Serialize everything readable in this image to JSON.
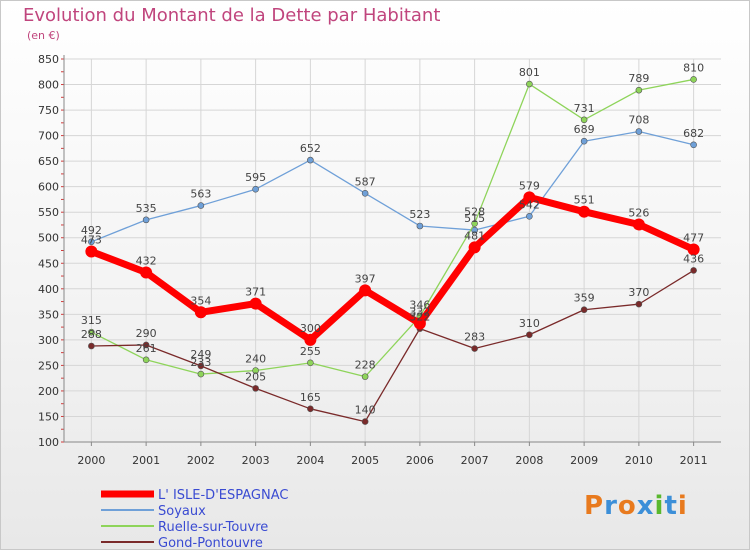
{
  "chart_data": {
    "type": "line",
    "title": "Evolution du Montant de la Dette par Habitant",
    "subtitle": "(en €)",
    "x": [
      "2000",
      "2001",
      "2002",
      "2003",
      "2004",
      "2005",
      "2006",
      "2007",
      "2008",
      "2009",
      "2010",
      "2011"
    ],
    "ylim": [
      100,
      850
    ],
    "yticks": [
      100,
      150,
      200,
      250,
      300,
      350,
      400,
      450,
      500,
      550,
      600,
      650,
      700,
      750,
      800,
      850
    ],
    "grid": true,
    "legend_position": "bottom-left",
    "series": [
      {
        "name": "L' ISLE-D'ESPAGNAC",
        "color": "#ff0000",
        "values": [
          473,
          432,
          354,
          371,
          300,
          397,
          332,
          481,
          579,
          551,
          526,
          477
        ]
      },
      {
        "name": "Soyaux",
        "color": "#6fa0d8",
        "values": [
          492,
          535,
          563,
          595,
          652,
          587,
          523,
          515,
          542,
          689,
          708,
          682
        ]
      },
      {
        "name": "Ruelle-sur-Touvre",
        "color": "#8ed45a",
        "values": [
          315,
          261,
          233,
          240,
          255,
          228,
          346,
          528,
          801,
          731,
          789,
          810
        ]
      },
      {
        "name": "Gond-Pontouvre",
        "color": "#7a2a2a",
        "values": [
          288,
          290,
          249,
          205,
          165,
          140,
          322,
          283,
          310,
          359,
          370,
          436
        ]
      }
    ]
  },
  "logo": {
    "text": "Proxiti",
    "colors": [
      "#e87a1e",
      "#3c8fd8",
      "#e87a1e",
      "#3c8fd8",
      "#5ab82e",
      "#3c8fd8",
      "#e87a1e"
    ]
  }
}
